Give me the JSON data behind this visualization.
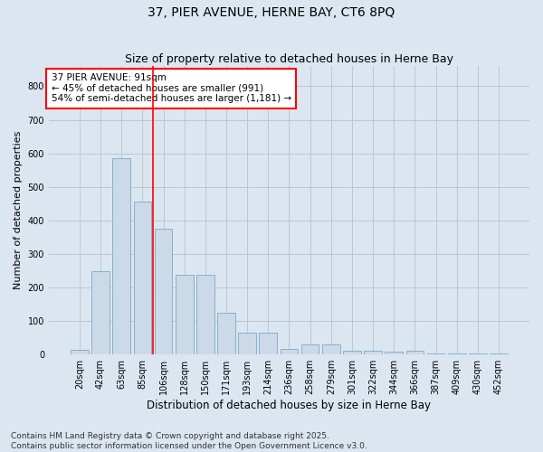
{
  "title": "37, PIER AVENUE, HERNE BAY, CT6 8PQ",
  "subtitle": "Size of property relative to detached houses in Herne Bay",
  "xlabel": "Distribution of detached houses by size in Herne Bay",
  "ylabel": "Number of detached properties",
  "categories": [
    "20sqm",
    "42sqm",
    "63sqm",
    "85sqm",
    "106sqm",
    "128sqm",
    "150sqm",
    "171sqm",
    "193sqm",
    "214sqm",
    "236sqm",
    "258sqm",
    "279sqm",
    "301sqm",
    "322sqm",
    "344sqm",
    "366sqm",
    "387sqm",
    "409sqm",
    "430sqm",
    "452sqm"
  ],
  "values": [
    15,
    248,
    585,
    455,
    375,
    238,
    238,
    125,
    65,
    65,
    18,
    30,
    30,
    10,
    10,
    8,
    10,
    2,
    2,
    2,
    2
  ],
  "bar_color": "#ccd9e8",
  "bar_edge_color": "#7aaac8",
  "vline_color": "red",
  "annotation_text": "37 PIER AVENUE: 91sqm\n← 45% of detached houses are smaller (991)\n54% of semi-detached houses are larger (1,181) →",
  "annotation_box_color": "white",
  "annotation_box_edge": "red",
  "ylim": [
    0,
    860
  ],
  "yticks": [
    0,
    100,
    200,
    300,
    400,
    500,
    600,
    700,
    800
  ],
  "grid_color": "#b8c8d8",
  "bg_color": "#dce6f0",
  "footer": "Contains HM Land Registry data © Crown copyright and database right 2025.\nContains public sector information licensed under the Open Government Licence v3.0.",
  "title_fontsize": 10,
  "subtitle_fontsize": 9,
  "xlabel_fontsize": 8.5,
  "ylabel_fontsize": 8,
  "tick_fontsize": 7,
  "annotation_fontsize": 7.5,
  "footer_fontsize": 6.5
}
